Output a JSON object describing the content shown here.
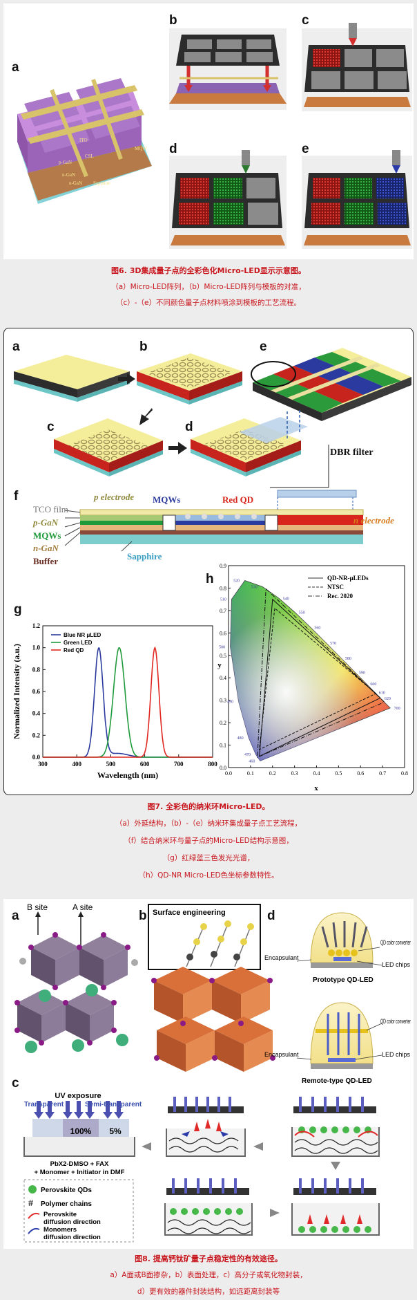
{
  "fig6": {
    "labels": [
      "a",
      "b",
      "c",
      "d",
      "e"
    ],
    "structure_labels": [
      "ITO",
      "p-GaN",
      "n-GaN",
      "n-GaN",
      "Sapphire",
      "CSL",
      "MQW"
    ],
    "caption_title": "图6. 3D集成量子点的全彩色化Micro-LED显示示意图。",
    "caption_lines": [
      "（a）Micro-LED阵列，（b）Micro-LED阵列与模板的对准，",
      "（c）-（e）不同颜色量子点材料喷涂到模板的工艺流程。"
    ]
  },
  "fig7": {
    "labels": [
      "a",
      "b",
      "c",
      "d",
      "e",
      "f",
      "g",
      "h"
    ],
    "dbr_label": "DBR filter",
    "layer_labels": {
      "tco": "TCO film",
      "pgan": "p-GaN",
      "mqws_left": "MQWs",
      "ngan": "n-GaN",
      "buffer": "Buffer",
      "sapphire": "Sapphire",
      "p_electrode": "p electrode",
      "mqws_mid": "MQWs",
      "red_qd": "Red QD",
      "n_electrode": "n electrode"
    },
    "caption_title": "图7. 全彩色的纳米环Micro-LED。",
    "caption_lines": [
      "（a）外延结构，（b）-（e）纳米环集成量子点工艺流程，",
      "（f）结合纳米环与量子点的Micro-LED结构示意图，",
      "（g）红绿蓝三色发光光谱，",
      "（h）QD-NR Micro-LED色坐标参数特性。"
    ]
  },
  "chart_data": [
    {
      "type": "line",
      "panel": "g",
      "xlabel": "Wavelength (nm)",
      "ylabel": "Normalized Intensity (a.u.)",
      "xlim": [
        300,
        800
      ],
      "ylim": [
        0.0,
        1.2
      ],
      "x_ticks": [
        300,
        400,
        500,
        600,
        700,
        800
      ],
      "y_ticks": [
        0.0,
        0.2,
        0.4,
        0.6,
        0.8,
        1.0,
        1.2
      ],
      "legend": "top-left",
      "series": [
        {
          "name": "Blue NR μLED",
          "color": "#2b3a9e",
          "peak": 465,
          "fwhm": 30,
          "amplitude": 1.0
        },
        {
          "name": "Green LED",
          "color": "#1e9a3a",
          "peak": 525,
          "fwhm": 40,
          "amplitude": 1.0
        },
        {
          "name": "Red QD",
          "color": "#e0261f",
          "peak": 630,
          "fwhm": 28,
          "amplitude": 1.0
        }
      ]
    },
    {
      "type": "scatter",
      "panel": "h",
      "xlabel": "x",
      "ylabel": "y",
      "xlim": [
        0.0,
        0.8
      ],
      "ylim": [
        0.0,
        0.9
      ],
      "x_ticks": [
        0.0,
        0.1,
        0.2,
        0.3,
        0.4,
        0.5,
        0.6,
        0.7,
        0.8
      ],
      "y_ticks": [
        0.0,
        0.1,
        0.2,
        0.3,
        0.4,
        0.5,
        0.6,
        0.7,
        0.8,
        0.9
      ],
      "legend": "top-right",
      "locus_wavelength_labels": [
        "460",
        "470",
        "480",
        "490",
        "500",
        "510",
        "520",
        "530",
        "540",
        "550",
        "560",
        "570",
        "580",
        "590",
        "600",
        "610",
        "620",
        "700"
      ],
      "series": [
        {
          "name": "QD-NR-μLEDs",
          "style": "solid",
          "points": [
            [
              0.69,
              0.31
            ],
            [
              0.2,
              0.75
            ],
            [
              0.14,
              0.05
            ]
          ]
        },
        {
          "name": "NTSC",
          "style": "dashed",
          "points": [
            [
              0.67,
              0.33
            ],
            [
              0.21,
              0.71
            ],
            [
              0.14,
              0.08
            ]
          ]
        },
        {
          "name": "Rec. 2020",
          "style": "dashdot",
          "points": [
            [
              0.708,
              0.292
            ],
            [
              0.17,
              0.797
            ],
            [
              0.131,
              0.046
            ]
          ]
        }
      ]
    }
  ],
  "fig8": {
    "labels": [
      "a",
      "b",
      "c",
      "d"
    ],
    "b_site": "B site",
    "a_site": "A site",
    "surface_engineering": "Surface engineering",
    "encapsulant1": "Encapsulant",
    "qd_color_converter1": "QD color converter",
    "led_chips1": "LED chips",
    "prototype": "Prototype QD-LED",
    "encapsulant2": "Encapsulant",
    "qd_color_converter2": "QD color converter",
    "led_chips2": "LED chips",
    "remote": "Remote-type QD-LED",
    "uv_exposure": "UV exposure",
    "transparent": "Transparent",
    "semi_transparent": "Semi-transparent",
    "pct100": "100%",
    "pct5": "5%",
    "solution1": "PbX2-DMSO + FAX",
    "solution2": "+ Monomer + Initiator in DMF",
    "legend": {
      "qds": "Perovskite QDs",
      "polymer": "Polymer chains",
      "perov_diff1": "Perovskite",
      "perov_diff2": "diffusion direction",
      "mono_diff1": "Monomers",
      "mono_diff2": "diffusion direction"
    },
    "caption_title": "图8. 提高钙钛矿量子点稳定性的有效途径。",
    "caption_lines": [
      "a）A面或B面掺杂，b）表面处理，c）高分子或氧化物封装，",
      "d）更有效的器件封装结构，如远距离封装等"
    ]
  },
  "colors": {
    "caption_red": "#c8161d",
    "frame_bg": "#ffffff",
    "page_bg": "#ededed"
  }
}
